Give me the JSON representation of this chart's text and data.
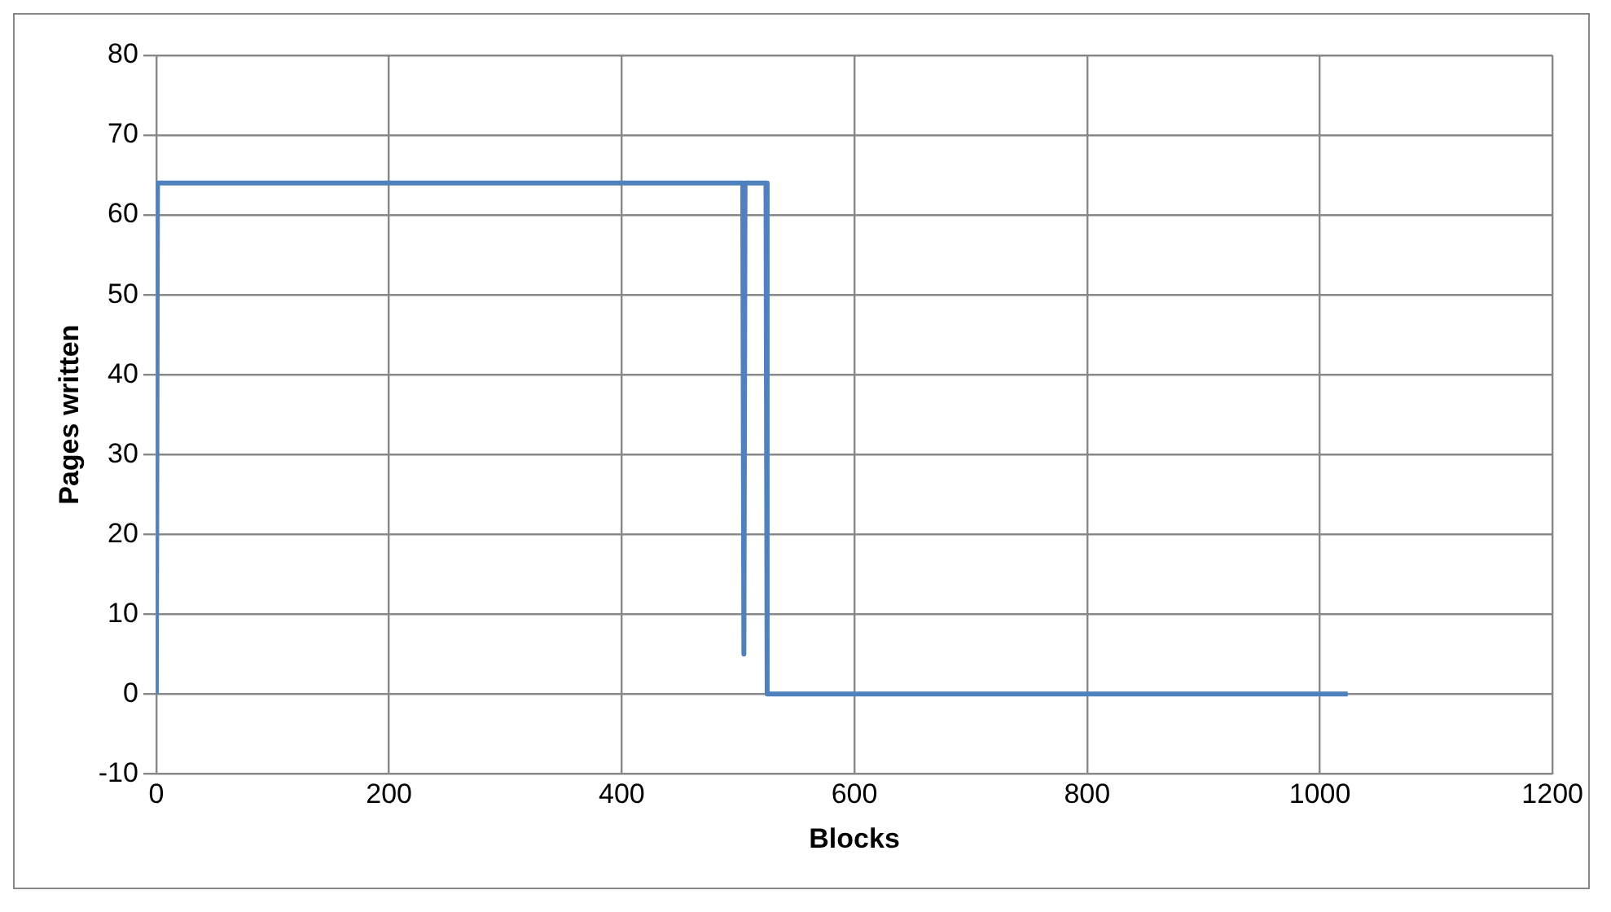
{
  "chart_data": {
    "type": "line",
    "xlabel": "Blocks",
    "ylabel": "Pages written",
    "series": [
      {
        "color": "#4f81bd",
        "x": [
          0,
          1,
          504,
          505,
          506,
          524,
          525,
          1024
        ],
        "values": [
          0,
          64,
          64,
          5,
          64,
          64,
          0,
          0
        ]
      }
    ],
    "xlim": [
      0,
      1200
    ],
    "xticks": [
      0,
      200,
      400,
      600,
      800,
      1000,
      1200
    ],
    "ylim": [
      -10,
      80
    ],
    "yticks": [
      -10,
      0,
      10,
      20,
      30,
      40,
      50,
      60,
      70,
      80
    ],
    "grid": true,
    "legend": false,
    "marker": "none",
    "line_style": "solid"
  }
}
